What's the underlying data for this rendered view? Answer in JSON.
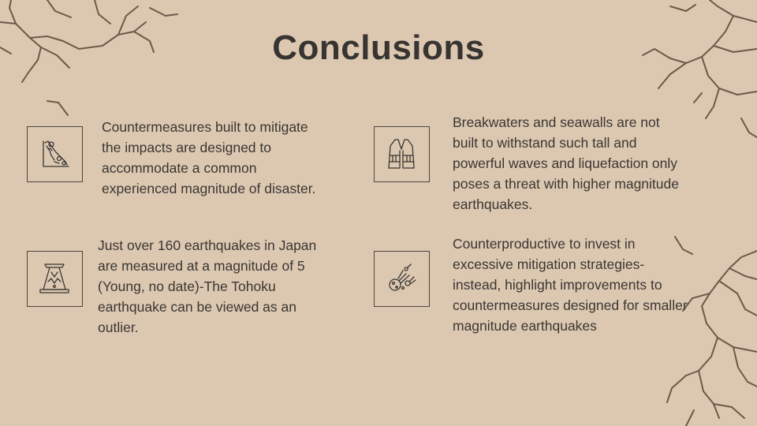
{
  "title": "Conclusions",
  "items": [
    {
      "icon": "landslide-icon",
      "text": "Countermeasures built to mitigate\nthe impacts are designed to\naccommodate a common\nexperienced magnitude of disaster."
    },
    {
      "icon": "life-vest-icon",
      "text": "Breakwaters and seawalls are not\nbuilt to withstand such tall and\npowerful waves and liquefaction only\nposes a threat with higher magnitude\nearthquakes."
    },
    {
      "icon": "volcano-icon",
      "text": "Just over 160 earthquakes in Japan\nare measured at a magnitude of 5\n(Young, no date)-The Tohoku\nearthquake can be viewed as an\noutlier."
    },
    {
      "icon": "meteor-icon",
      "text": "Counterproductive to invest in\nexcessive mitigation strategies-\ninstead, highlight improvements to\ncountermeasures designed for smaller\nmagnitude earthquakes"
    }
  ],
  "colors": {
    "background": "#dcc8b1",
    "text": "#3a3632",
    "crack": "#5a4a3c"
  }
}
